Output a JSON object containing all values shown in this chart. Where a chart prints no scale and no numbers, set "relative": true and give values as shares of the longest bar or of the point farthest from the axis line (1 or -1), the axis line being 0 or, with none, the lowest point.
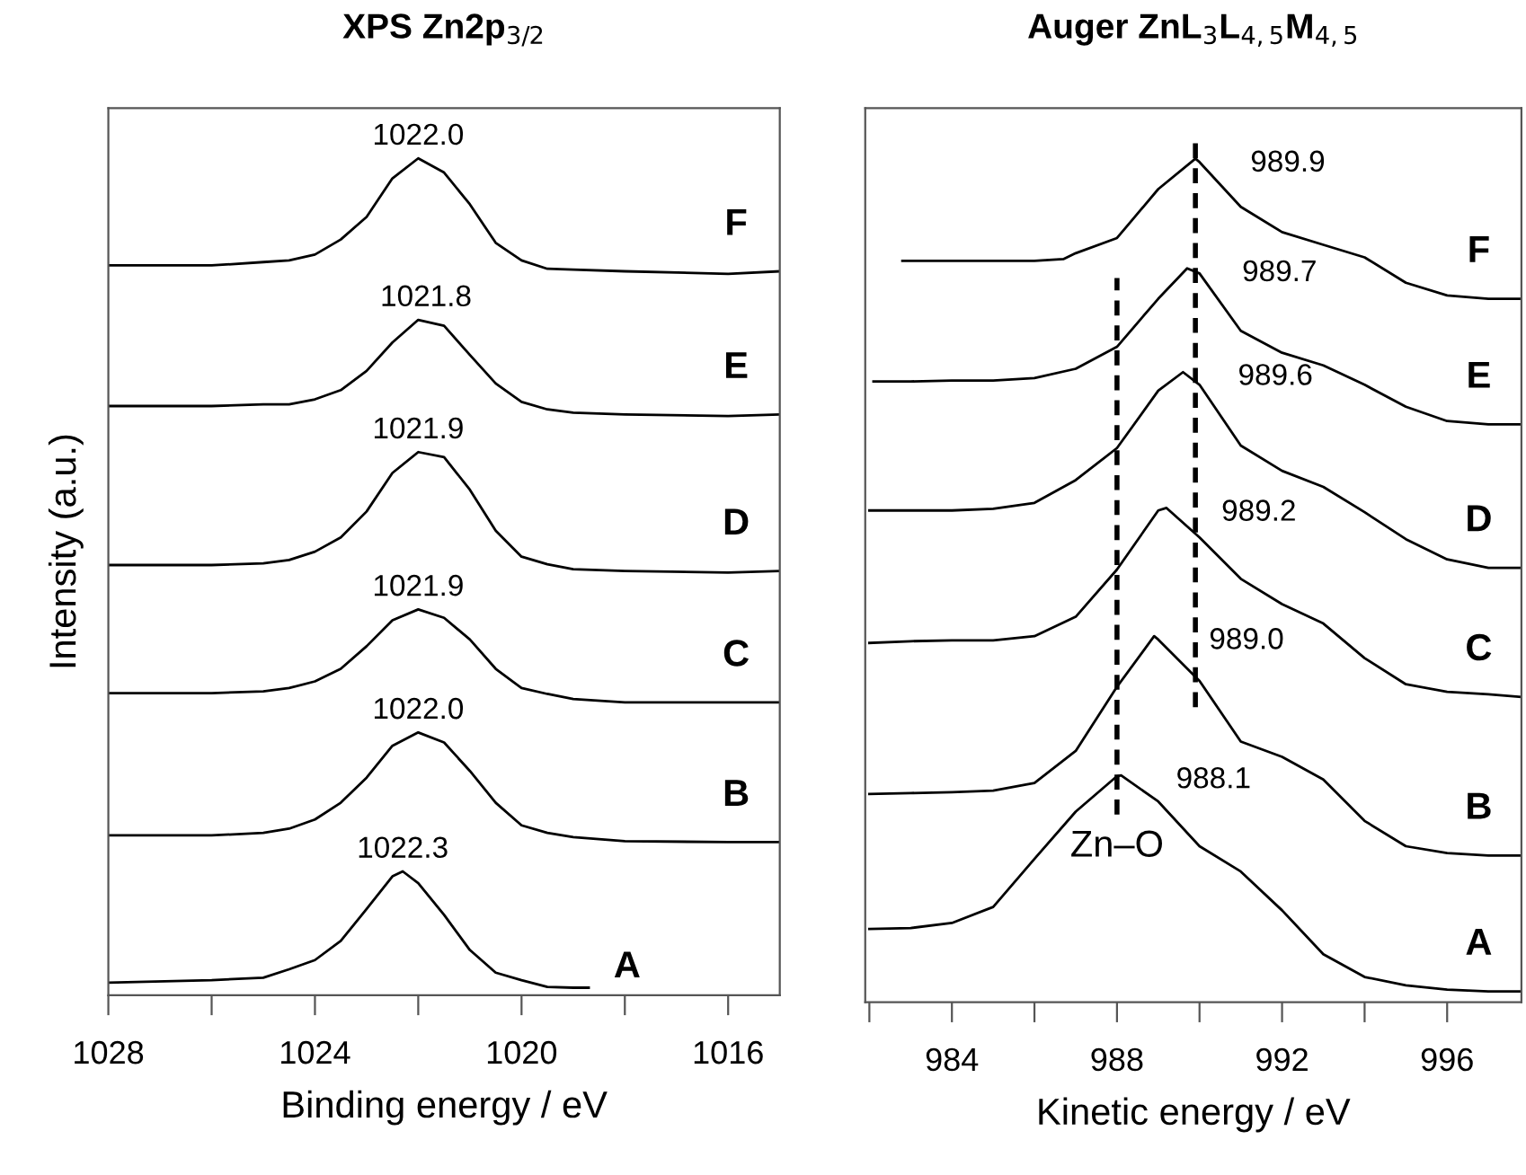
{
  "chart_data": [
    {
      "type": "line",
      "title": "XPS Zn2p$_{3/2}$",
      "xlabel": "Binding energy / eV",
      "ylabel": "Intensity (a.u.)",
      "relative": true,
      "tick_labels": "x",
      "grid": false,
      "legend": false,
      "xlim": [
        1028,
        1015
      ],
      "xticks": [
        1028,
        {
          "value": 1026,
          "label": null
        },
        1024,
        {
          "value": 1022,
          "label": null
        },
        1020,
        {
          "value": 1018,
          "label": null
        },
        1016
      ],
      "series": [
        {
          "name": "A",
          "color": "#000000",
          "x": [
            1028,
            1026,
            1025,
            1024.5,
            1024,
            1023.5,
            1023,
            1022.5,
            1022.3,
            1022,
            1021.5,
            1021,
            1020.5,
            1020,
            1019.5,
            1019,
            1018.7
          ],
          "values": [
            0.015,
            0.018,
            0.021,
            0.031,
            0.042,
            0.065,
            0.103,
            0.142,
            0.148,
            0.134,
            0.096,
            0.054,
            0.027,
            0.018,
            0.01,
            0.009,
            0.009
          ]
        },
        {
          "name": "B",
          "color": "#000000",
          "x": [
            1028,
            1026,
            1025,
            1024.5,
            1024,
            1023.5,
            1023,
            1022.5,
            1022,
            1021.5,
            1021,
            1020.5,
            1020,
            1019.5,
            1019,
            1018,
            1016,
            1015
          ],
          "values": [
            0.191,
            0.191,
            0.194,
            0.199,
            0.21,
            0.23,
            0.26,
            0.298,
            0.314,
            0.302,
            0.268,
            0.23,
            0.203,
            0.194,
            0.189,
            0.184,
            0.183,
            0.183
          ]
        },
        {
          "name": "C",
          "color": "#000000",
          "x": [
            1028,
            1026,
            1025,
            1024.5,
            1024,
            1023.5,
            1023,
            1022.5,
            1022,
            1021.5,
            1021,
            1020.5,
            1020,
            1019.5,
            1019,
            1018,
            1016,
            1015
          ],
          "values": [
            0.361,
            0.361,
            0.363,
            0.367,
            0.375,
            0.39,
            0.417,
            0.448,
            0.461,
            0.451,
            0.425,
            0.39,
            0.367,
            0.36,
            0.354,
            0.35,
            0.35,
            0.35
          ]
        },
        {
          "name": "D",
          "color": "#000000",
          "x": [
            1028,
            1026,
            1025,
            1024.5,
            1024,
            1023.5,
            1023,
            1022.5,
            1022,
            1021.5,
            1021,
            1020.5,
            1020,
            1019.5,
            1019,
            1018,
            1016,
            1015
          ],
          "values": [
            0.514,
            0.514,
            0.516,
            0.52,
            0.53,
            0.547,
            0.578,
            0.624,
            0.649,
            0.643,
            0.604,
            0.555,
            0.524,
            0.515,
            0.509,
            0.507,
            0.505,
            0.507
          ]
        },
        {
          "name": "E",
          "color": "#000000",
          "x": [
            1028,
            1026,
            1025,
            1024.5,
            1024,
            1023.5,
            1023,
            1022.5,
            1022,
            1021.5,
            1021,
            1020.5,
            1020,
            1019.5,
            1019,
            1018,
            1016,
            1015
          ],
          "values": [
            0.704,
            0.704,
            0.706,
            0.706,
            0.712,
            0.723,
            0.746,
            0.78,
            0.807,
            0.8,
            0.765,
            0.731,
            0.709,
            0.7,
            0.696,
            0.694,
            0.692,
            0.694
          ]
        },
        {
          "name": "F",
          "color": "#000000",
          "x": [
            1028,
            1026,
            1025,
            1024.5,
            1024,
            1023.5,
            1023,
            1022.5,
            1022,
            1021.5,
            1021,
            1020.5,
            1020,
            1019.5,
            1019,
            1018,
            1016,
            1015
          ],
          "values": [
            0.872,
            0.872,
            0.876,
            0.878,
            0.885,
            0.903,
            0.93,
            0.976,
            1.0,
            0.983,
            0.945,
            0.899,
            0.878,
            0.868,
            0.867,
            0.865,
            0.862,
            0.865
          ]
        }
      ],
      "annotations": [
        {
          "text": "1022.3",
          "x": 1022.3,
          "y": 0.148
        },
        {
          "text": "1022.0",
          "x": 1022,
          "y": 0.314
        },
        {
          "text": "1021.9",
          "x": 1022,
          "y": 0.461
        },
        {
          "text": "1021.9",
          "x": 1022,
          "y": 0.649
        },
        {
          "text": "1021.8",
          "x": 1021.85,
          "y": 0.807
        },
        {
          "text": "1022.0",
          "x": 1022,
          "y": 1.0
        }
      ]
    },
    {
      "type": "line",
      "title": "Auger ZnL$_{3}$L$_{4,5}$M$_{4,5}$",
      "xlabel": "Kinetic energy / eV",
      "relative": true,
      "tick_labels": "x",
      "grid": false,
      "legend": false,
      "xlim": [
        981.9,
        997.8
      ],
      "xticks": [
        {
          "value": 982,
          "label": null
        },
        984,
        {
          "value": 986,
          "label": null
        },
        988,
        {
          "value": 990,
          "label": null
        },
        992,
        {
          "value": 994,
          "label": null
        },
        996
      ],
      "series": [
        {
          "name": "A",
          "color": "#000000",
          "x": [
            982,
            983,
            984,
            985,
            986,
            987,
            988,
            988.1,
            989,
            990,
            991,
            992,
            993,
            994,
            995,
            996,
            997,
            997.8
          ],
          "values": [
            0.087,
            0.088,
            0.094,
            0.113,
            0.17,
            0.226,
            0.268,
            0.269,
            0.238,
            0.185,
            0.155,
            0.109,
            0.057,
            0.03,
            0.02,
            0.015,
            0.013,
            0.013
          ]
        },
        {
          "name": "B",
          "color": "#000000",
          "x": [
            982,
            983,
            984,
            985,
            986,
            987,
            988,
            988.9,
            989,
            990,
            991,
            992,
            993,
            994,
            995,
            996,
            997,
            997.8
          ],
          "values": [
            0.247,
            0.248,
            0.249,
            0.251,
            0.26,
            0.298,
            0.374,
            0.434,
            0.43,
            0.381,
            0.309,
            0.291,
            0.264,
            0.215,
            0.185,
            0.177,
            0.174,
            0.174
          ]
        },
        {
          "name": "C",
          "color": "#000000",
          "x": [
            982,
            983,
            984,
            985,
            986,
            987,
            988,
            989,
            989.2,
            990,
            991,
            992,
            993,
            994,
            995,
            996,
            997,
            997.8
          ],
          "values": [
            0.426,
            0.428,
            0.429,
            0.429,
            0.434,
            0.457,
            0.513,
            0.583,
            0.586,
            0.551,
            0.502,
            0.472,
            0.449,
            0.408,
            0.377,
            0.368,
            0.365,
            0.362
          ]
        },
        {
          "name": "D",
          "color": "#000000",
          "x": [
            982,
            983,
            984,
            985,
            986,
            987,
            988,
            989,
            989.6,
            990,
            991,
            992,
            993,
            994,
            995,
            996,
            997,
            997.8
          ],
          "values": [
            0.583,
            0.583,
            0.583,
            0.585,
            0.592,
            0.619,
            0.657,
            0.725,
            0.747,
            0.732,
            0.66,
            0.63,
            0.611,
            0.581,
            0.549,
            0.525,
            0.515,
            0.515
          ]
        },
        {
          "name": "E",
          "color": "#000000",
          "x": [
            982.1,
            983,
            984,
            985,
            986,
            987,
            988,
            989,
            989.7,
            990,
            991,
            992,
            993,
            994,
            995,
            996,
            997,
            997.8
          ],
          "values": [
            0.736,
            0.736,
            0.737,
            0.737,
            0.74,
            0.751,
            0.777,
            0.834,
            0.87,
            0.864,
            0.796,
            0.77,
            0.755,
            0.732,
            0.706,
            0.689,
            0.685,
            0.685
          ]
        },
        {
          "name": "F",
          "color": "#000000",
          "x": [
            982.8,
            983,
            984,
            985,
            986,
            986.7,
            987,
            988,
            989,
            989.9,
            990,
            991,
            992,
            993,
            994,
            995,
            996,
            997,
            997.8
          ],
          "values": [
            0.879,
            0.879,
            0.879,
            0.879,
            0.879,
            0.881,
            0.888,
            0.906,
            0.964,
            1.0,
            0.996,
            0.943,
            0.913,
            0.898,
            0.883,
            0.853,
            0.838,
            0.834,
            0.834
          ]
        }
      ],
      "ref_lines": [
        {
          "axis": "x",
          "value": 988,
          "label": "Zn–O",
          "line_style": "dashed",
          "color": "#000000"
        },
        {
          "axis": "x",
          "value": 989.9,
          "line_style": "dashed",
          "color": "#000000"
        }
      ],
      "annotations": [
        {
          "text": "988.1",
          "x": 988.1,
          "y": 0.269
        },
        {
          "text": "989.0",
          "x": 988.9,
          "y": 0.434
        },
        {
          "text": "989.2",
          "x": 989.2,
          "y": 0.586
        },
        {
          "text": "989.6",
          "x": 989.6,
          "y": 0.747
        },
        {
          "text": "989.7",
          "x": 989.7,
          "y": 0.87
        },
        {
          "text": "989.9",
          "x": 989.9,
          "y": 1.0
        }
      ]
    }
  ]
}
